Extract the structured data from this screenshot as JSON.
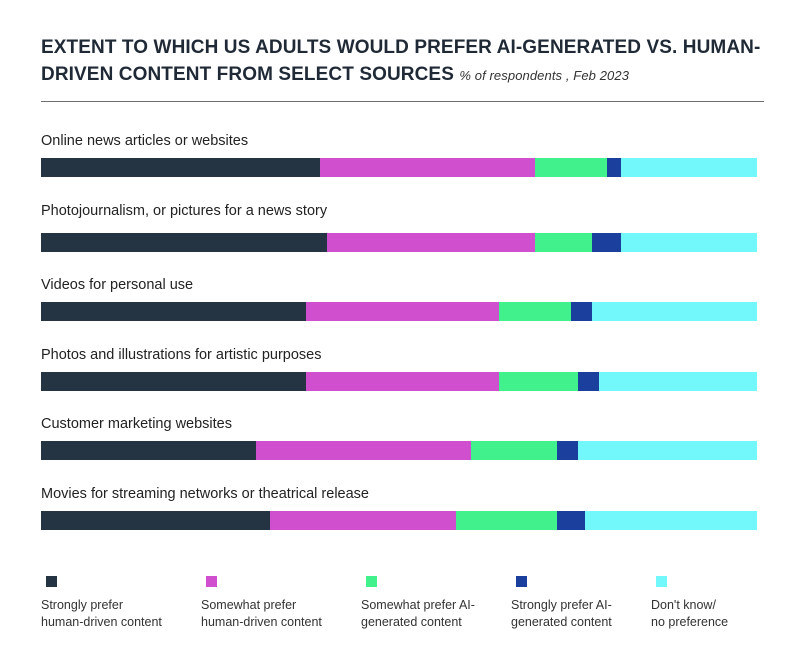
{
  "chart_data": {
    "type": "bar",
    "orientation": "horizontal-stacked-100",
    "title": "EXTENT TO WHICH US ADULTS WOULD PREFER AI-GENERATED VS. HUMAN-DRIVEN CONTENT FROM SELECT SOURCES",
    "subtitle": "% of respondents , Feb 2023",
    "categories": [
      "Online news articles or websites",
      "Photojournalism, or pictures for a news story",
      "Videos for personal use",
      "Photos and illustrations for artistic purposes",
      "Customer marketing websites",
      "Movies for streaming networks or theatrical release"
    ],
    "series": [
      {
        "name": "Strongly prefer human-driven content",
        "line1": "Strongly prefer",
        "line2": "human-driven content",
        "color": "#243442",
        "values": [
          39,
          40,
          37,
          37,
          30,
          32
        ]
      },
      {
        "name": "Somewhat prefer human-driven content",
        "line1": "Somewhat prefer",
        "line2": "human-driven content",
        "color": "#cf4fcf",
        "values": [
          30,
          29,
          27,
          27,
          30,
          26
        ]
      },
      {
        "name": "Somewhat prefer AI-generated content",
        "line1": "Somewhat prefer AI-",
        "line2": "generated content",
        "color": "#41f18b",
        "values": [
          10,
          8,
          10,
          11,
          12,
          14
        ]
      },
      {
        "name": "Strongly prefer AI-generated content",
        "line1": "Strongly prefer AI-",
        "line2": "generated content",
        "color": "#1a3f9c",
        "values": [
          2,
          4,
          3,
          3,
          3,
          4
        ]
      },
      {
        "name": "Don't know/ no preference",
        "line1": "Don't know/",
        "line2": "no preference",
        "color": "#72f7fb",
        "values": [
          19,
          19,
          23,
          22,
          25,
          24
        ]
      }
    ]
  }
}
